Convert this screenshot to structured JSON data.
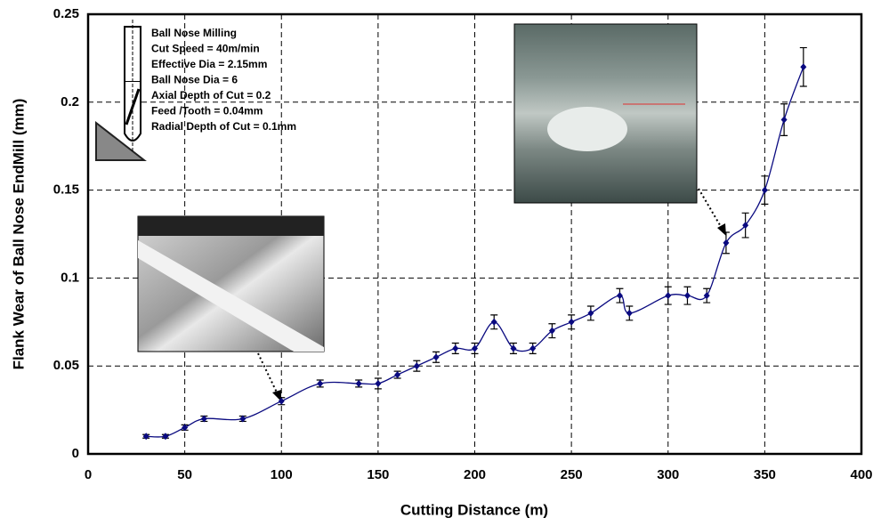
{
  "chart_data": {
    "type": "line",
    "x_label": "Cutting Distance (m)",
    "y_label": "Flank Wear of Ball Nose EndMill (mm)",
    "x": [
      30,
      40,
      50,
      60,
      80,
      100,
      120,
      140,
      150,
      160,
      170,
      180,
      190,
      200,
      210,
      220,
      230,
      240,
      250,
      260,
      275,
      280,
      300,
      310,
      320,
      330,
      340,
      350,
      360,
      370
    ],
    "series": [
      {
        "color": "#0a0a80",
        "values": [
          0.01,
          0.01,
          0.015,
          0.02,
          0.02,
          0.03,
          0.04,
          0.04,
          0.04,
          0.045,
          0.05,
          0.055,
          0.06,
          0.06,
          0.075,
          0.06,
          0.06,
          0.07,
          0.075,
          0.08,
          0.09,
          0.08,
          0.09,
          0.09,
          0.09,
          0.12,
          0.13,
          0.15,
          0.19,
          0.22
        ],
        "errors": [
          0.001,
          0.001,
          0.0015,
          0.0015,
          0.0015,
          0.002,
          0.002,
          0.002,
          0.003,
          0.002,
          0.003,
          0.003,
          0.003,
          0.003,
          0.004,
          0.003,
          0.003,
          0.004,
          0.004,
          0.004,
          0.004,
          0.004,
          0.005,
          0.005,
          0.004,
          0.006,
          0.007,
          0.008,
          0.009,
          0.011
        ]
      }
    ],
    "xlim": [
      0,
      400
    ],
    "xticks": [
      0,
      50,
      100,
      150,
      200,
      250,
      300,
      350,
      400
    ],
    "ylim": [
      0,
      0.25
    ],
    "yticks": [
      0,
      0.05,
      0.1,
      0.15,
      0.2,
      0.25
    ],
    "grid": true,
    "annotation": [
      "Ball Nose Milling",
      "Cut Speed = 40m/min",
      "Effective Dia = 2.15mm",
      "Ball Nose Dia = 6",
      "Axial Depth of Cut = 0.2",
      "Feed /Tooth = 0.04mm",
      "Radial Depth of Cut = 0.1mm"
    ]
  }
}
